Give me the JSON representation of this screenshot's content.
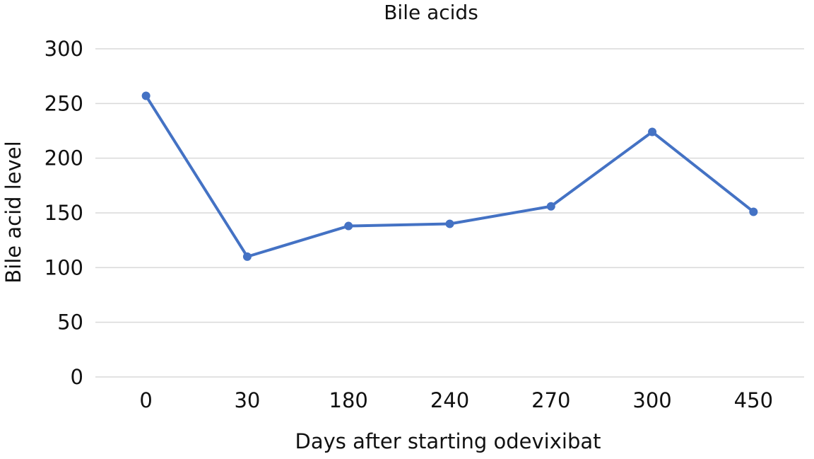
{
  "chart_data": {
    "type": "line",
    "title": "Bile acids",
    "xlabel": "Days after starting odevixibat",
    "ylabel": "Bile acid level",
    "categories": [
      "0",
      "30",
      "180",
      "240",
      "270",
      "300",
      "450"
    ],
    "series": [
      {
        "values": [
          257,
          110,
          138,
          140,
          156,
          224,
          151
        ]
      }
    ],
    "ylim": [
      0,
      300
    ],
    "yticks": [
      0,
      50,
      100,
      150,
      200,
      250,
      300
    ],
    "grid": true,
    "legend": "none",
    "colors": {
      "series": "#4472c4",
      "grid": "#d9d9d9"
    }
  }
}
